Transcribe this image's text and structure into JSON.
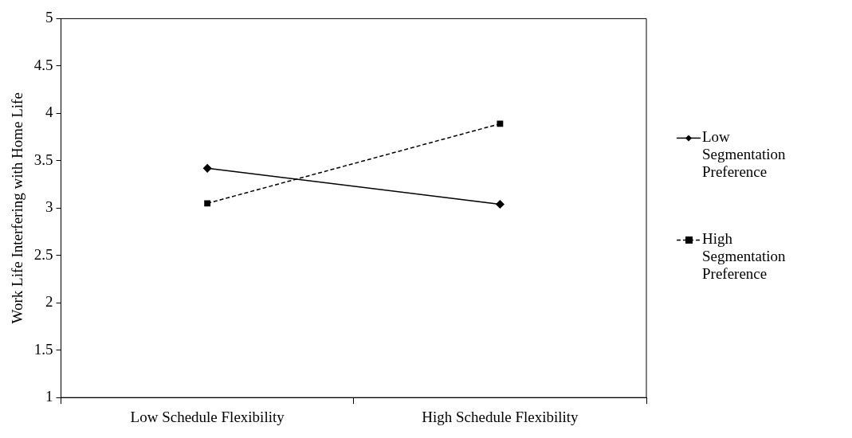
{
  "chart_data": {
    "type": "line",
    "categories": [
      "Low Schedule Flexibility",
      "High Schedule Flexibility"
    ],
    "ylabel": "Work Life Interfering with Home Life",
    "ylim": [
      1,
      5
    ],
    "yticks": [
      1,
      1.5,
      2,
      2.5,
      3,
      3.5,
      4,
      4.5,
      5
    ],
    "grid": false,
    "legend": "right",
    "series": [
      {
        "name": "Low Segmentation Preference",
        "color": "#000000",
        "values": [
          3.42,
          3.04
        ],
        "marker": "diamond",
        "line_style": "solid"
      },
      {
        "name": "High Segmentation Preference",
        "color": "#000000",
        "values": [
          3.05,
          3.89
        ],
        "marker": "square",
        "line_style": "dashed"
      }
    ]
  }
}
